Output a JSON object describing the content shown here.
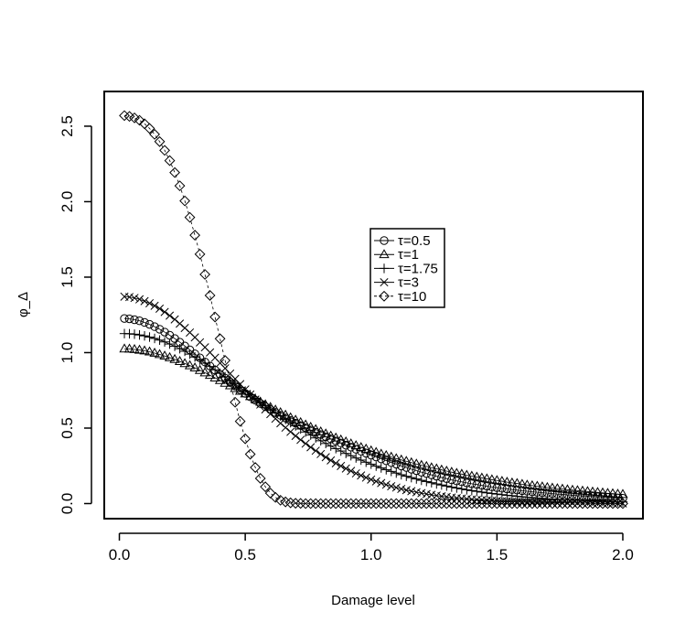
{
  "chart_data": {
    "type": "scatter",
    "title": "",
    "xlabel": "Damage level",
    "ylabel": "φ_Δ",
    "xlim": [
      -0.06,
      2.08
    ],
    "ylim": [
      -0.1,
      2.73
    ],
    "x_ticks": [
      "0.0",
      "0.5",
      "1.0",
      "1.5",
      "2.0"
    ],
    "y_ticks": [
      "0.0",
      "0.5",
      "1.0",
      "1.5",
      "2.0",
      "2.5"
    ],
    "grid": false,
    "legend_position": "center",
    "x": [
      0.02,
      0.04,
      0.06,
      0.08,
      0.1,
      0.12,
      0.14,
      0.16,
      0.18,
      0.2,
      0.22,
      0.24,
      0.26,
      0.28,
      0.3,
      0.32,
      0.34,
      0.36,
      0.38,
      0.4,
      0.42,
      0.44,
      0.46,
      0.48,
      0.5,
      0.52,
      0.54,
      0.56,
      0.58,
      0.6,
      0.62,
      0.64,
      0.66,
      0.68,
      0.7,
      0.72,
      0.74,
      0.76,
      0.78,
      0.8,
      0.82,
      0.84,
      0.86,
      0.88,
      0.9,
      0.92,
      0.94,
      0.96,
      0.98,
      1.0,
      1.02,
      1.04,
      1.06,
      1.08,
      1.1,
      1.12,
      1.14,
      1.16,
      1.18,
      1.2,
      1.22,
      1.24,
      1.26,
      1.28,
      1.3,
      1.32,
      1.34,
      1.36,
      1.38,
      1.4,
      1.42,
      1.44,
      1.46,
      1.48,
      1.5,
      1.52,
      1.54,
      1.56,
      1.58,
      1.6,
      1.62,
      1.64,
      1.66,
      1.68,
      1.7,
      1.72,
      1.74,
      1.76,
      1.78,
      1.8,
      1.82,
      1.84,
      1.86,
      1.88,
      1.9,
      1.92,
      1.94,
      1.96,
      1.98,
      2.0
    ],
    "series": [
      {
        "name": "τ=0.5",
        "marker": "circle",
        "values": [
          1.226,
          1.224,
          1.218,
          1.211,
          1.2,
          1.187,
          1.172,
          1.155,
          1.136,
          1.115,
          1.093,
          1.069,
          1.044,
          1.018,
          0.992,
          0.965,
          0.938,
          0.911,
          0.884,
          0.857,
          0.831,
          0.805,
          0.779,
          0.754,
          0.73,
          0.707,
          0.685,
          0.663,
          0.642,
          0.622,
          0.603,
          0.585,
          0.567,
          0.55,
          0.533,
          0.517,
          0.502,
          0.487,
          0.472,
          0.457,
          0.443,
          0.429,
          0.415,
          0.401,
          0.387,
          0.374,
          0.36,
          0.347,
          0.334,
          0.321,
          0.309,
          0.296,
          0.284,
          0.272,
          0.261,
          0.249,
          0.239,
          0.228,
          0.218,
          0.208,
          0.199,
          0.19,
          0.181,
          0.173,
          0.165,
          0.157,
          0.15,
          0.144,
          0.137,
          0.131,
          0.126,
          0.12,
          0.115,
          0.11,
          0.105,
          0.101,
          0.097,
          0.093,
          0.089,
          0.085,
          0.082,
          0.078,
          0.075,
          0.072,
          0.069,
          0.066,
          0.063,
          0.061,
          0.058,
          0.056,
          0.053,
          0.051,
          0.049,
          0.047,
          0.045,
          0.043,
          0.041,
          0.039,
          0.037,
          0.035
        ]
      },
      {
        "name": "τ=1",
        "marker": "triangle",
        "values": [
          1.025,
          1.024,
          1.021,
          1.017,
          1.012,
          1.005,
          0.997,
          0.988,
          0.978,
          0.967,
          0.955,
          0.942,
          0.928,
          0.914,
          0.899,
          0.883,
          0.867,
          0.85,
          0.833,
          0.816,
          0.798,
          0.781,
          0.763,
          0.745,
          0.727,
          0.709,
          0.691,
          0.673,
          0.655,
          0.638,
          0.62,
          0.603,
          0.586,
          0.569,
          0.553,
          0.537,
          0.521,
          0.506,
          0.491,
          0.476,
          0.462,
          0.448,
          0.435,
          0.422,
          0.409,
          0.396,
          0.384,
          0.372,
          0.361,
          0.35,
          0.339,
          0.328,
          0.318,
          0.308,
          0.298,
          0.289,
          0.28,
          0.271,
          0.262,
          0.254,
          0.246,
          0.238,
          0.23,
          0.223,
          0.215,
          0.208,
          0.201,
          0.195,
          0.188,
          0.182,
          0.176,
          0.17,
          0.164,
          0.158,
          0.153,
          0.148,
          0.142,
          0.137,
          0.133,
          0.128,
          0.123,
          0.119,
          0.115,
          0.111,
          0.107,
          0.103,
          0.099,
          0.096,
          0.092,
          0.089,
          0.086,
          0.083,
          0.08,
          0.077,
          0.074,
          0.071,
          0.068,
          0.066,
          0.063,
          0.061
        ]
      },
      {
        "name": "τ=1.75",
        "marker": "plus",
        "values": [
          1.126,
          1.125,
          1.122,
          1.117,
          1.111,
          1.103,
          1.094,
          1.083,
          1.071,
          1.057,
          1.042,
          1.026,
          1.009,
          0.99,
          0.971,
          0.951,
          0.93,
          0.908,
          0.886,
          0.863,
          0.84,
          0.817,
          0.793,
          0.769,
          0.745,
          0.721,
          0.697,
          0.673,
          0.649,
          0.626,
          0.603,
          0.58,
          0.558,
          0.536,
          0.515,
          0.494,
          0.474,
          0.454,
          0.435,
          0.416,
          0.398,
          0.381,
          0.364,
          0.348,
          0.332,
          0.317,
          0.302,
          0.288,
          0.274,
          0.261,
          0.248,
          0.236,
          0.224,
          0.213,
          0.202,
          0.191,
          0.181,
          0.172,
          0.163,
          0.154,
          0.146,
          0.138,
          0.13,
          0.123,
          0.116,
          0.109,
          0.103,
          0.097,
          0.091,
          0.086,
          0.081,
          0.076,
          0.071,
          0.067,
          0.063,
          0.059,
          0.055,
          0.052,
          0.048,
          0.045,
          0.042,
          0.04,
          0.037,
          0.035,
          0.032,
          0.03,
          0.028,
          0.026,
          0.025,
          0.023,
          0.021,
          0.02,
          0.018,
          0.017,
          0.016,
          0.015,
          0.014,
          0.013,
          0.012,
          0.011
        ]
      },
      {
        "name": "τ=3",
        "marker": "cross",
        "values": [
          1.371,
          1.368,
          1.362,
          1.353,
          1.341,
          1.327,
          1.31,
          1.291,
          1.269,
          1.245,
          1.22,
          1.192,
          1.163,
          1.133,
          1.101,
          1.068,
          1.035,
          1.001,
          0.966,
          0.931,
          0.896,
          0.861,
          0.826,
          0.791,
          0.756,
          0.722,
          0.689,
          0.656,
          0.624,
          0.593,
          0.562,
          0.532,
          0.503,
          0.475,
          0.448,
          0.422,
          0.397,
          0.373,
          0.35,
          0.328,
          0.307,
          0.286,
          0.267,
          0.249,
          0.232,
          0.216,
          0.2,
          0.186,
          0.172,
          0.159,
          0.147,
          0.136,
          0.125,
          0.115,
          0.106,
          0.097,
          0.089,
          0.082,
          0.075,
          0.069,
          0.063,
          0.058,
          0.053,
          0.048,
          0.044,
          0.04,
          0.036,
          0.033,
          0.03,
          0.027,
          0.025,
          0.023,
          0.02,
          0.019,
          0.017,
          0.015,
          0.014,
          0.013,
          0.011,
          0.01,
          0.009,
          0.008,
          0.008,
          0.007,
          0.006,
          0.006,
          0.005,
          0.005,
          0.004,
          0.004,
          0.003,
          0.003,
          0.003,
          0.002,
          0.002,
          0.002,
          0.002,
          0.002,
          0.001,
          0.001
        ]
      },
      {
        "name": "τ=10",
        "marker": "diamond",
        "values": [
          2.57,
          2.565,
          2.555,
          2.539,
          2.516,
          2.485,
          2.446,
          2.398,
          2.34,
          2.272,
          2.193,
          2.105,
          2.005,
          1.896,
          1.778,
          1.652,
          1.518,
          1.379,
          1.236,
          1.092,
          0.948,
          0.807,
          0.671,
          0.545,
          0.429,
          0.327,
          0.239,
          0.167,
          0.111,
          0.069,
          0.041,
          0.022,
          0.011,
          0.005,
          0.002,
          0.001,
          0.0,
          0.0,
          0.0,
          0.0,
          0.0,
          0.0,
          0.0,
          0.0,
          0.0,
          0.0,
          0.0,
          0.0,
          0.0,
          0.0,
          0.0,
          0.0,
          0.0,
          0.0,
          0.0,
          0.0,
          0.0,
          0.0,
          0.0,
          0.0,
          0.0,
          0.0,
          0.0,
          0.0,
          0.0,
          0.0,
          0.0,
          0.0,
          0.0,
          0.0,
          0.0,
          0.0,
          0.0,
          0.0,
          0.0,
          0.0,
          0.0,
          0.0,
          0.0,
          0.0,
          0.0,
          0.0,
          0.0,
          0.0,
          0.0,
          0.0,
          0.0,
          0.0,
          0.0,
          0.0,
          0.0,
          0.0,
          0.0,
          0.0,
          0.0,
          0.0,
          0.0,
          0.0,
          0.0,
          0.0
        ]
      }
    ]
  }
}
